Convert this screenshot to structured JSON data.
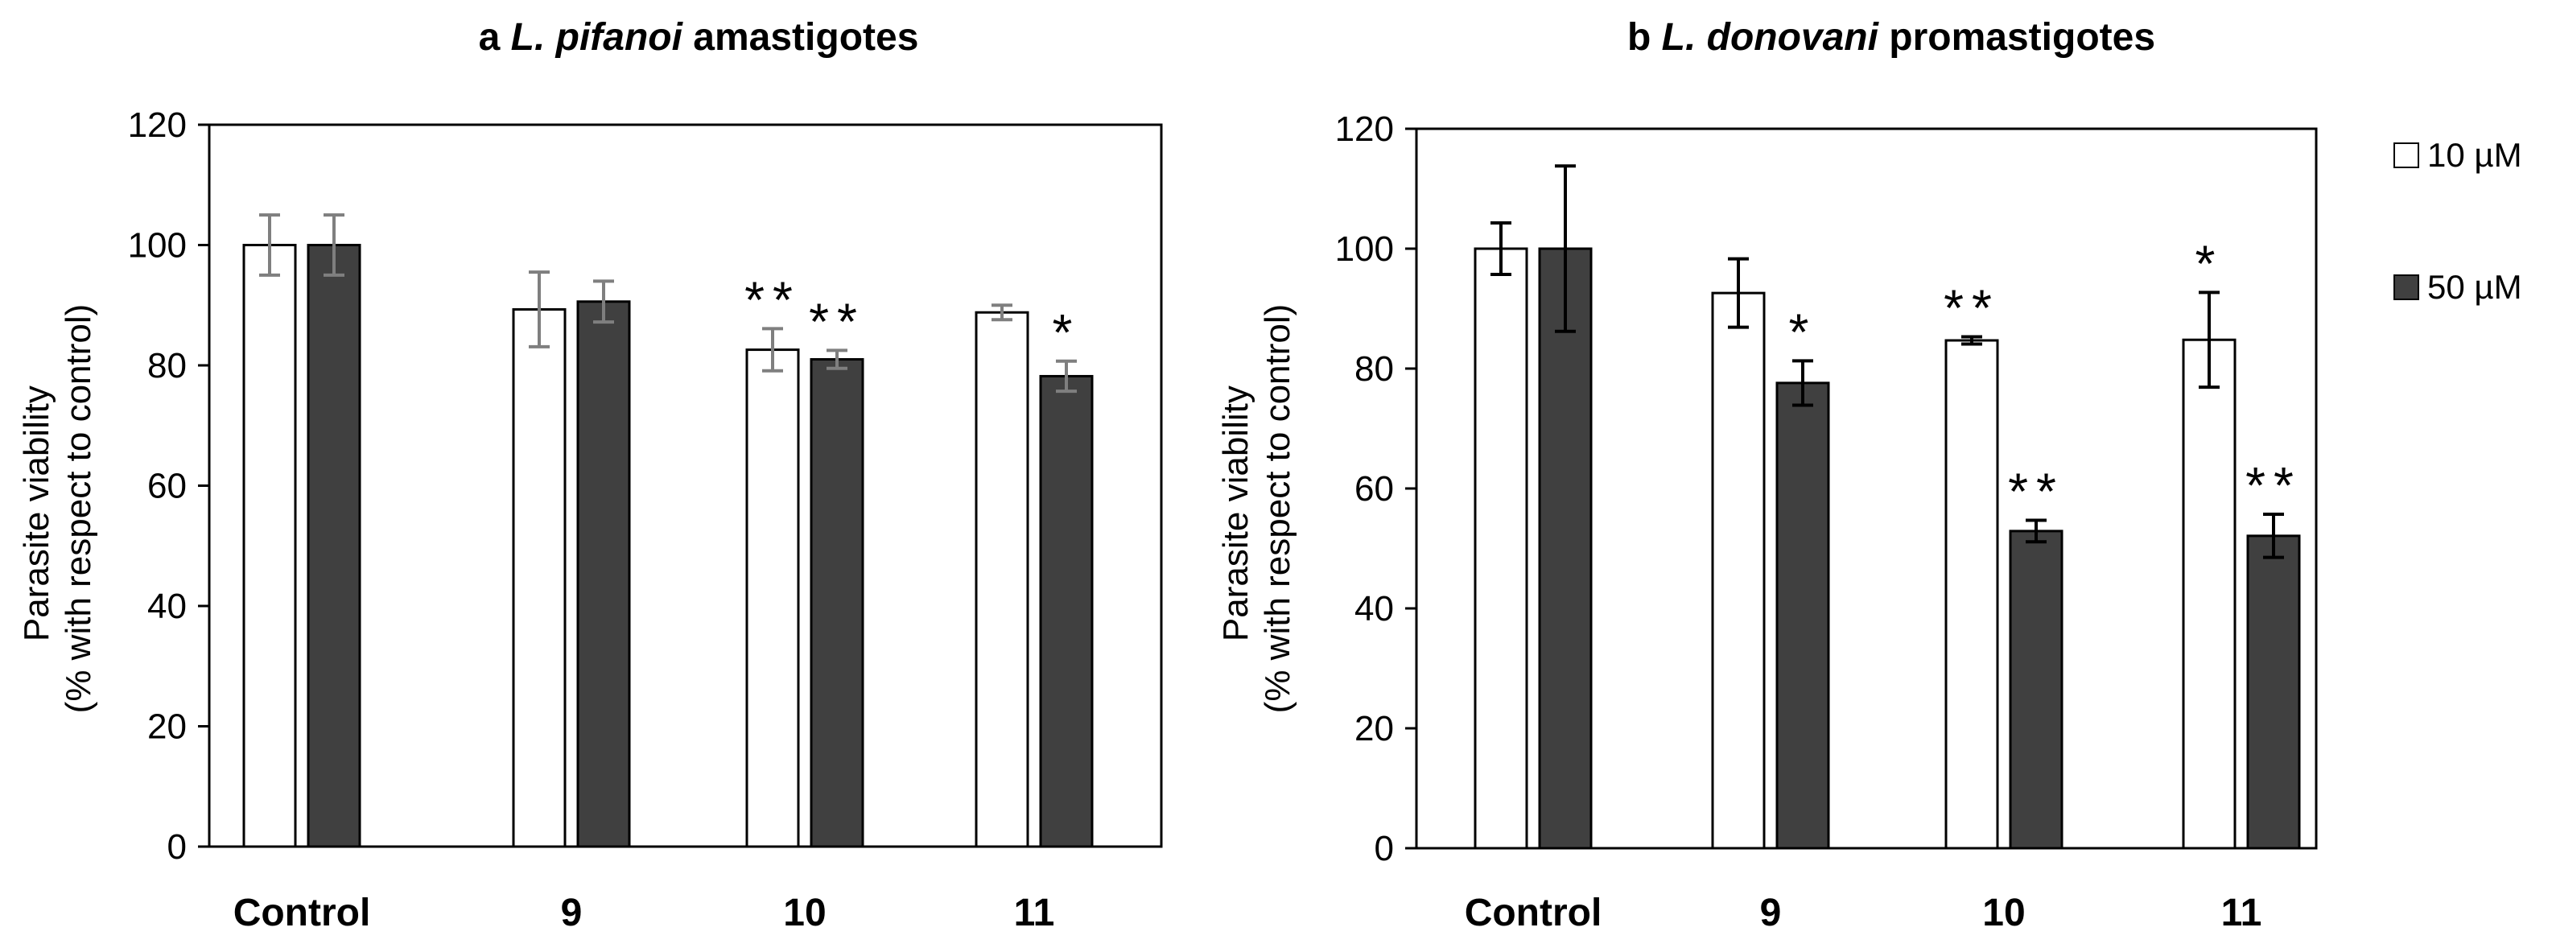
{
  "legend": {
    "entries": [
      {
        "label": "10 µM",
        "color": "#ffffff"
      },
      {
        "label": "50 µM",
        "color": "#404040"
      }
    ]
  },
  "chart_data": [
    {
      "type": "bar",
      "panel_prefix": "a",
      "title_species": " L. pifanoi",
      "title_rest": " amastigotes",
      "ylabel_line1": "Parasite viability",
      "ylabel_line2": "(% with respect to control)",
      "xlabel": "",
      "categories": [
        "Control",
        "9",
        "10",
        "11"
      ],
      "ylim": [
        0,
        120
      ],
      "yticks": [
        0,
        20,
        40,
        60,
        80,
        100,
        120
      ],
      "series": [
        {
          "name": "10 µM",
          "color": "#ffffff",
          "values": [
            100,
            89.3,
            82.6,
            88.8
          ],
          "errors": [
            5,
            6.2,
            3.5,
            1.2
          ],
          "significance": [
            "",
            "",
            "**",
            ""
          ]
        },
        {
          "name": "50 µM",
          "color": "#404040",
          "values": [
            100,
            90.6,
            81.0,
            78.2
          ],
          "errors": [
            5,
            3.4,
            1.5,
            2.5
          ],
          "significance": [
            "",
            "",
            "**",
            "*"
          ]
        }
      ]
    },
    {
      "type": "bar",
      "panel_prefix": "b",
      "title_species": " L. donovani",
      "title_rest": " promastigotes",
      "ylabel_line1": "Parasite viability",
      "ylabel_line2": "(% with respect to control)",
      "xlabel": "",
      "categories": [
        "Control",
        "9",
        "10",
        "11"
      ],
      "ylim": [
        0,
        120
      ],
      "yticks": [
        0,
        20,
        40,
        60,
        80,
        100,
        120
      ],
      "series": [
        {
          "name": "10 µM",
          "color": "#ffffff",
          "values": [
            100,
            92.6,
            84.7,
            84.8
          ],
          "errors": [
            4.3,
            5.7,
            0.6,
            7.9
          ],
          "significance": [
            "",
            "",
            "**",
            "*"
          ]
        },
        {
          "name": "50 µM",
          "color": "#404040",
          "values": [
            100,
            77.6,
            52.9,
            52.1
          ],
          "errors": [
            13.8,
            3.7,
            1.8,
            3.6
          ],
          "significance": [
            "",
            "*",
            "**",
            "**"
          ]
        }
      ]
    }
  ]
}
